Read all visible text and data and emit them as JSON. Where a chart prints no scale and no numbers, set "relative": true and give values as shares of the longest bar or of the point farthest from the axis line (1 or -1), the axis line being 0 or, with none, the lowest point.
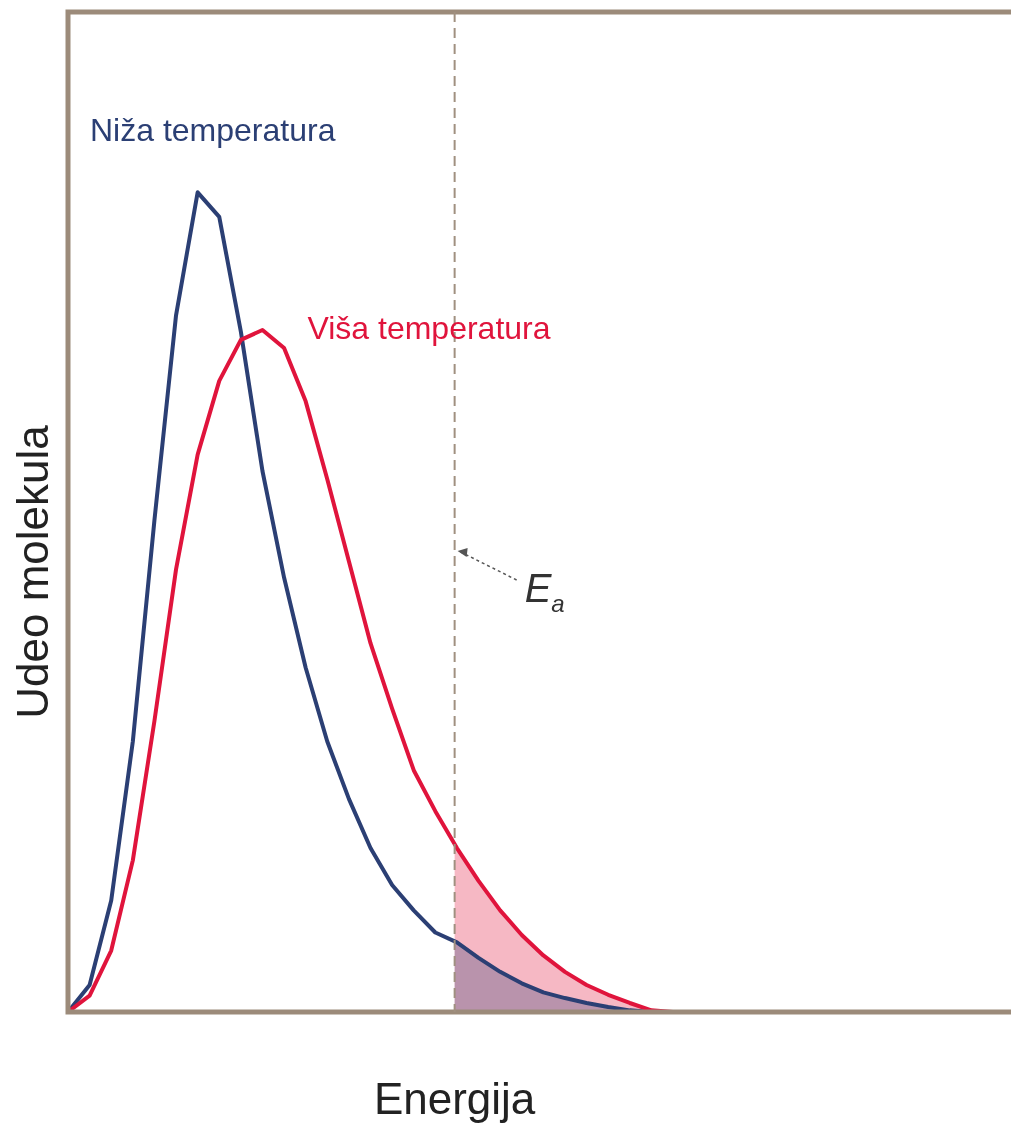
{
  "chart_data": {
    "type": "line",
    "xlabel": "Energija",
    "ylabel": "Udeo molekula",
    "relative": true,
    "grid": false,
    "legend": false,
    "marker": "none",
    "line_style": "solid",
    "categories": [
      null,
      null,
      null,
      null,
      null,
      null,
      null,
      null,
      null,
      null,
      null,
      null,
      null,
      null,
      null,
      null,
      null,
      null,
      null,
      null,
      null,
      null,
      null,
      null,
      null,
      null,
      null,
      null,
      null
    ],
    "series": [
      {
        "name": "Niža temperatura",
        "color": "#2b3f74",
        "values": [
          0,
          0.033,
          0.136,
          0.33,
          0.6,
          0.85,
          1,
          0.97,
          0.83,
          0.66,
          0.53,
          0.42,
          0.33,
          0.26,
          0.2,
          0.155,
          0.124,
          0.097,
          0.085,
          0.066,
          0.049,
          0.035,
          0.024,
          0.017,
          0.011,
          0.006,
          0.002,
          0,
          null
        ]
      },
      {
        "name": "Viša temperatura",
        "color": "#e0143c",
        "values": [
          0,
          0.02,
          0.075,
          0.185,
          0.355,
          0.54,
          0.68,
          0.77,
          0.82,
          0.832,
          0.81,
          0.745,
          0.65,
          0.55,
          0.45,
          0.37,
          0.295,
          0.245,
          0.2,
          0.16,
          0.124,
          0.094,
          0.069,
          0.049,
          0.033,
          0.021,
          0.011,
          0.002,
          0
        ]
      }
    ],
    "annotations": [
      "E$_{a}$"
    ]
  }
}
